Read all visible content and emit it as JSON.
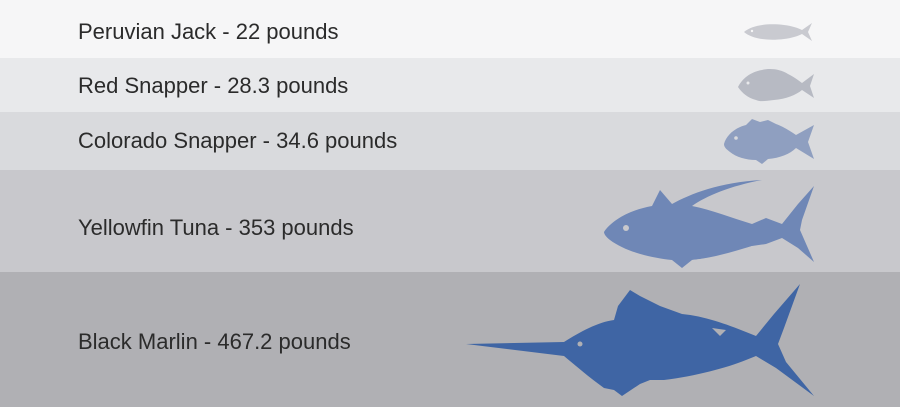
{
  "rows": [
    {
      "label": "Peruvian Jack - 22 pounds",
      "icon": "jack-fish-icon",
      "band_color": "#f6f6f7",
      "fish_color": "#c9cad0"
    },
    {
      "label": "Red Snapper - 28.3 pounds",
      "icon": "snapper-fish-icon",
      "band_color": "#e8e9eb",
      "fish_color": "#b7bac3"
    },
    {
      "label": "Colorado Snapper - 34.6 pounds",
      "icon": "grouper-fish-icon",
      "band_color": "#d9dadd",
      "fish_color": "#8f9fc0"
    },
    {
      "label": "Yellowfin Tuna - 353 pounds",
      "icon": "tuna-fish-icon",
      "band_color": "#c8c8cc",
      "fish_color": "#6f87b6"
    },
    {
      "label": "Black Marlin - 467.2 pounds",
      "icon": "marlin-fish-icon",
      "band_color": "#b0b0b4",
      "fish_color": "#3f65a4"
    }
  ]
}
